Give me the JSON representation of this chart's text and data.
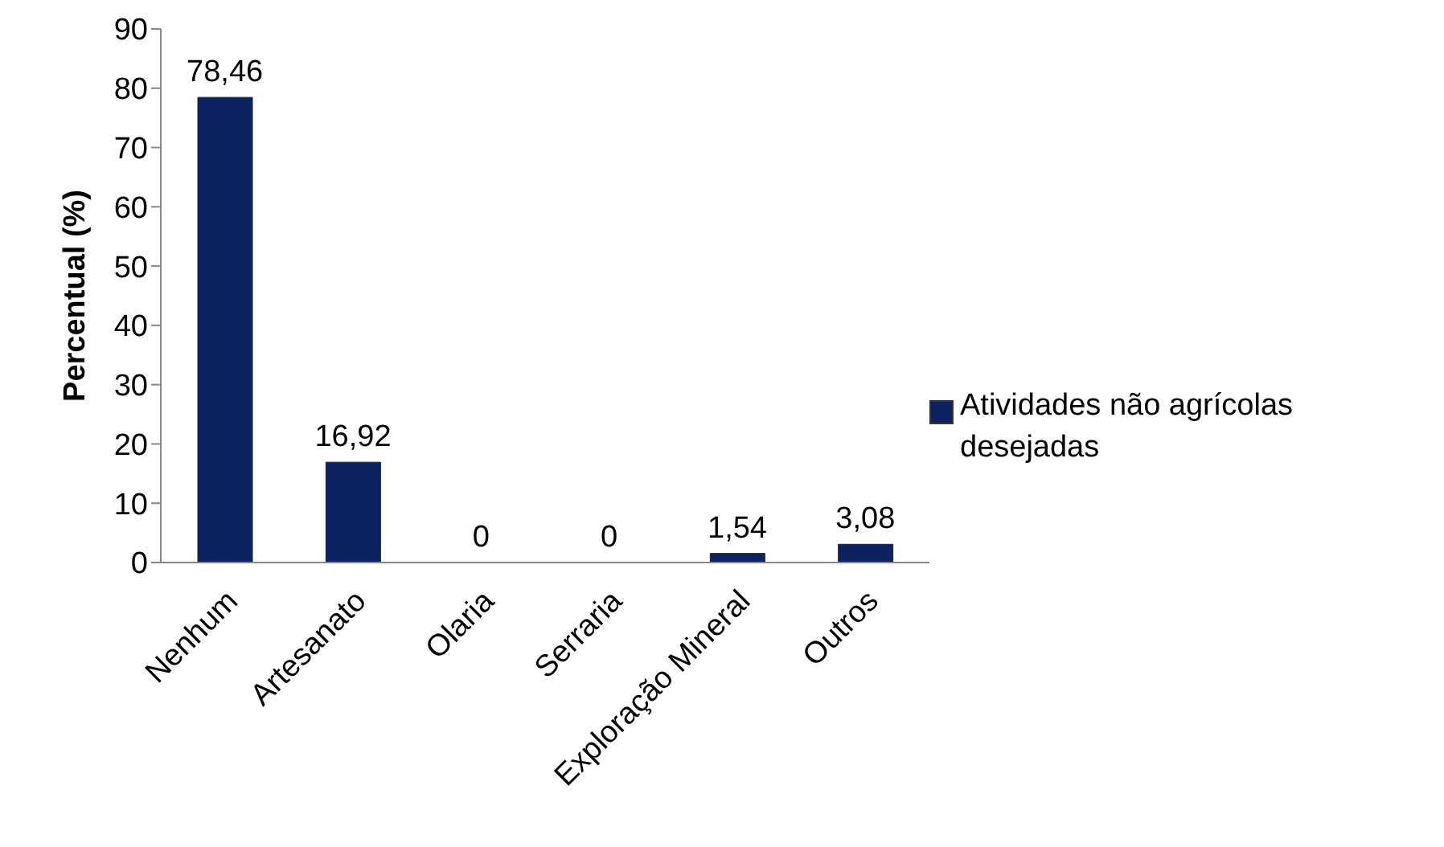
{
  "chart_data": {
    "type": "bar",
    "ylabel": "Percentual (%)",
    "categories": [
      "Nenhum",
      "Artesanato",
      "Olaria",
      "Serraria",
      "Exploração Mineral",
      "Outros"
    ],
    "series": [
      {
        "name": "Atividades não agrícolas desejadas",
        "color": "#0d2260",
        "values": [
          78.46,
          16.92,
          0,
          0,
          1.54,
          3.08
        ],
        "value_labels": [
          "78,46",
          "16,92",
          "0",
          "0",
          "1,54",
          "3,08"
        ]
      }
    ],
    "ylim": [
      0,
      90
    ],
    "yticks": [
      0,
      10,
      20,
      30,
      40,
      50,
      60,
      70,
      80,
      90
    ],
    "grid": false,
    "legend": "right"
  }
}
